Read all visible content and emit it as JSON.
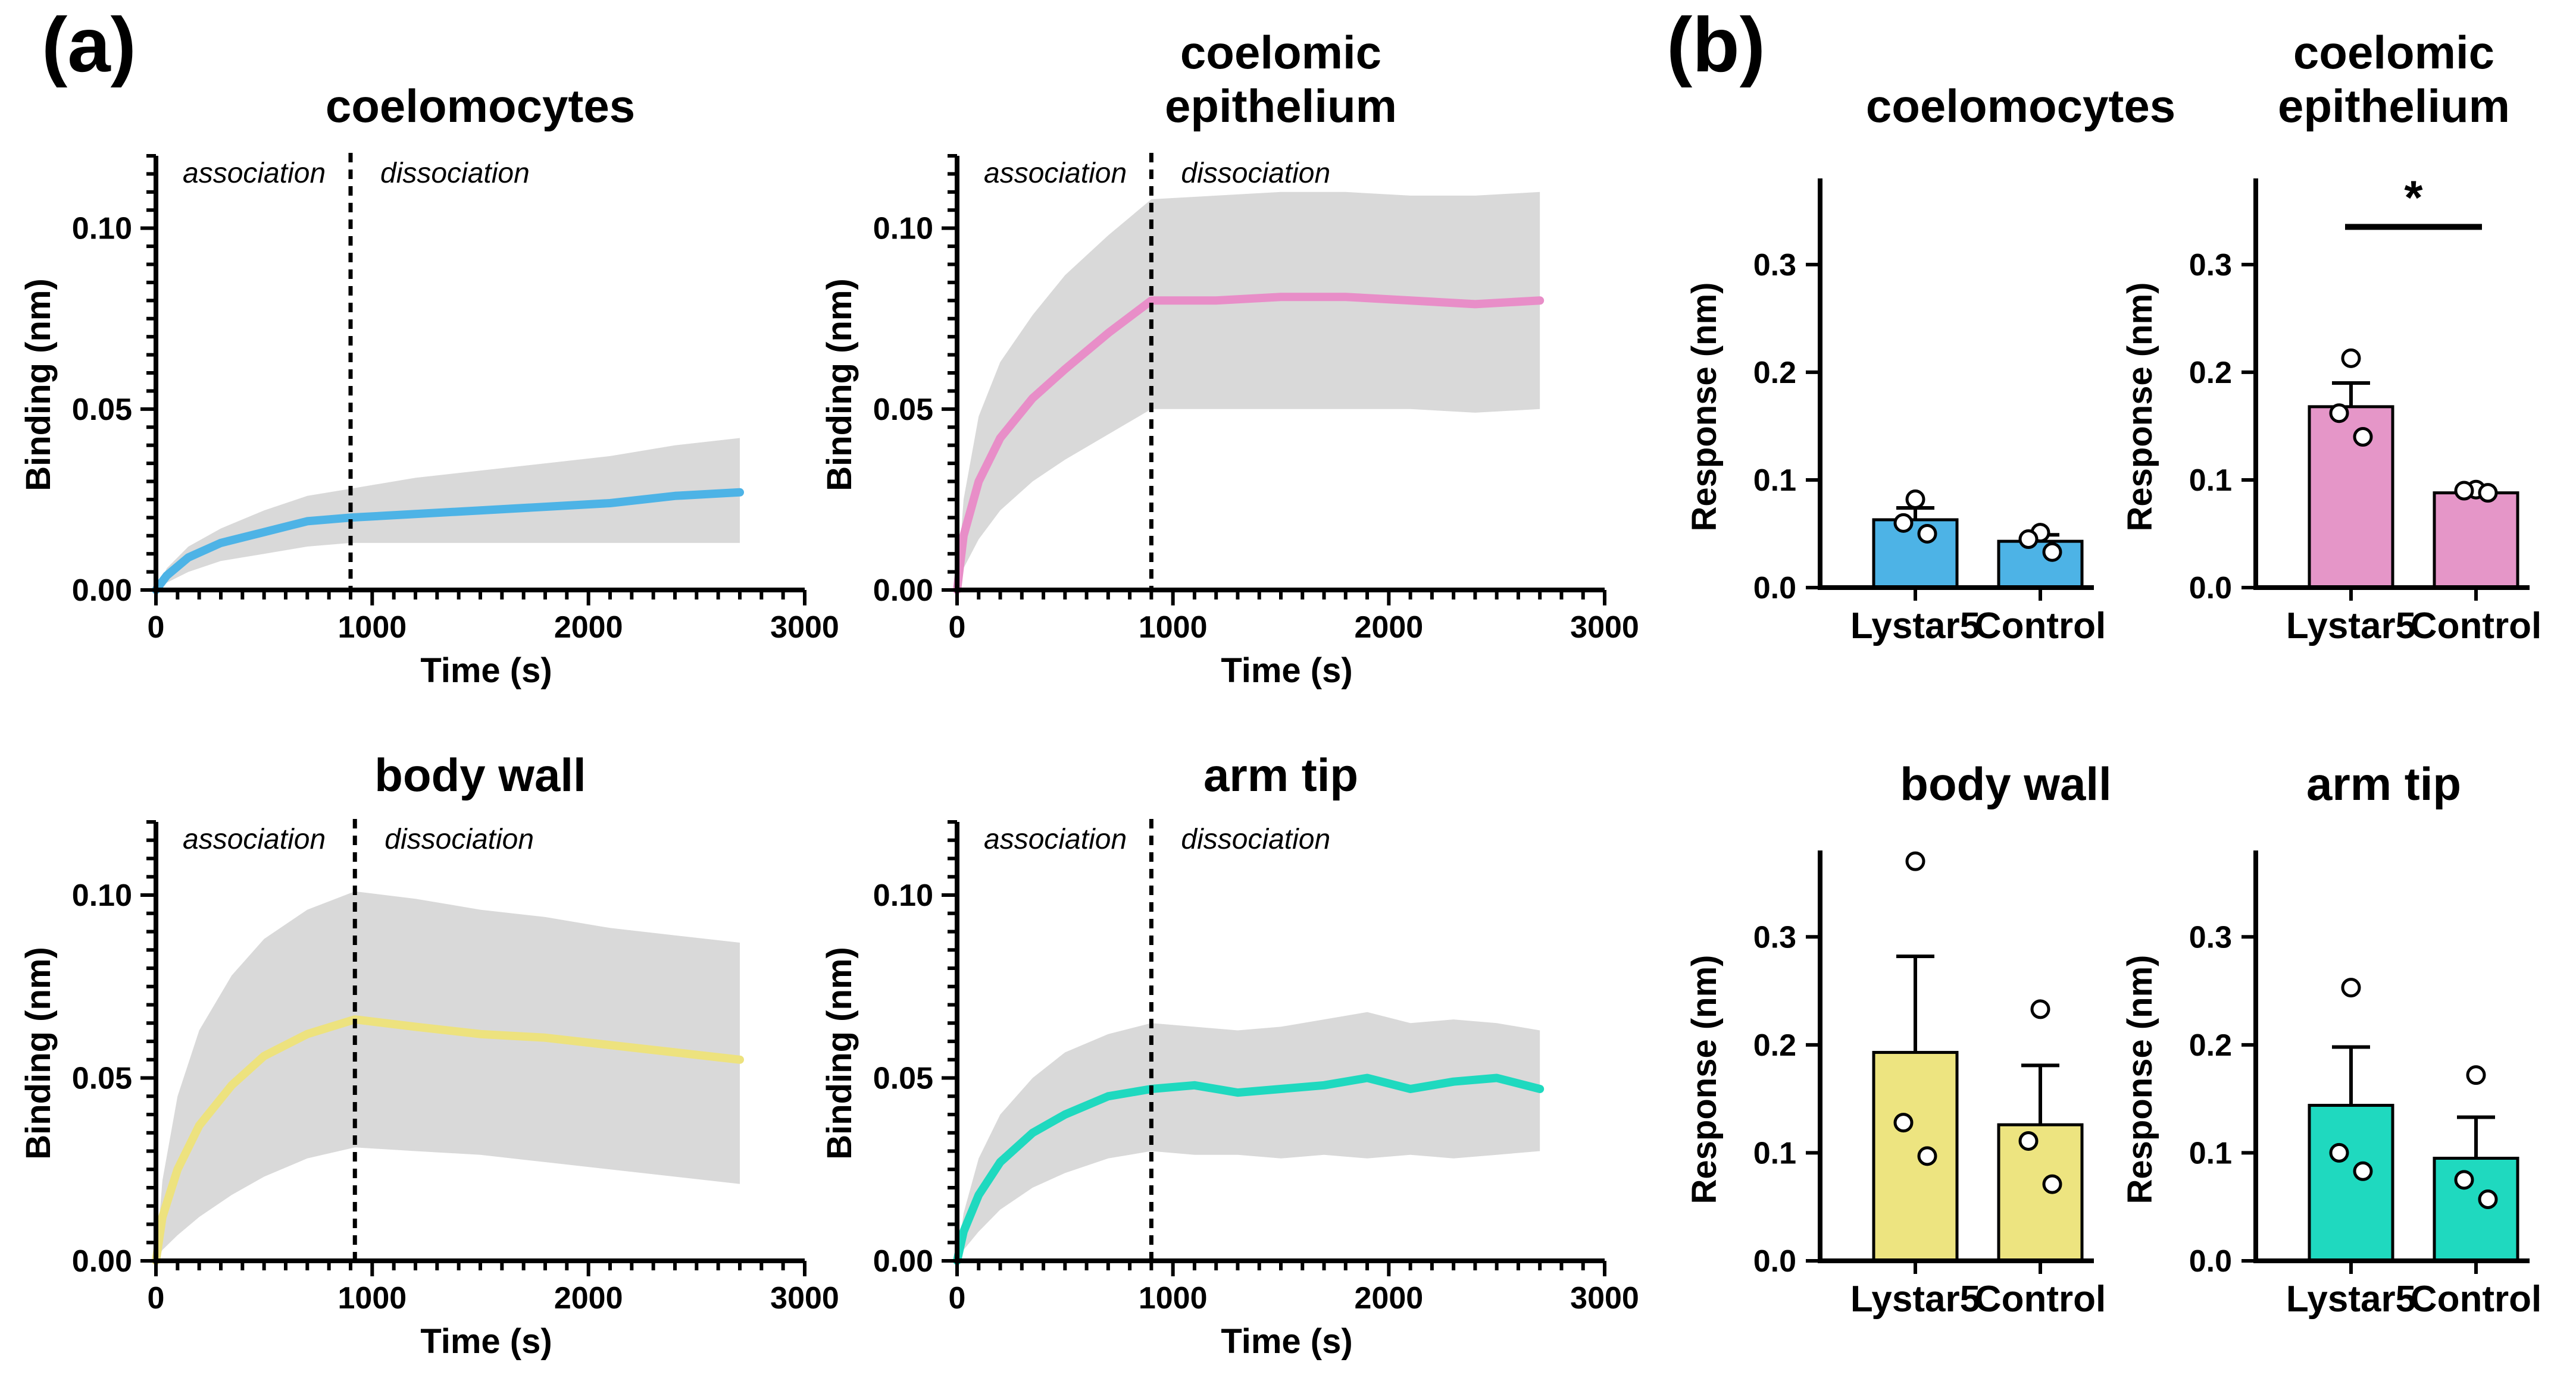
{
  "panels": {
    "a": "(a)",
    "b": "(b)"
  },
  "chart_data": [
    {
      "id": "kin-coelomocytes",
      "panel": "a",
      "type": "line",
      "title": [
        "coelomocytes"
      ],
      "xlabel": "Time (s)",
      "ylabel": "Binding (nm)",
      "xlim": [
        0,
        3000
      ],
      "ylim": [
        0,
        0.12
      ],
      "xticks": [
        0,
        1000,
        2000,
        3000
      ],
      "yticks": [
        0.0,
        0.05,
        0.1
      ],
      "ytick_labels": [
        "0.00",
        "0.05",
        "0.10"
      ],
      "x_dissociation": 900,
      "annotations": [
        "association",
        "dissociation"
      ],
      "color": "#4db3e6",
      "series": [
        {
          "name": "mean",
          "x": [
            0,
            50,
            150,
            300,
            500,
            700,
            900,
            1200,
            1500,
            1800,
            2100,
            2400,
            2700
          ],
          "y": [
            0.0,
            0.004,
            0.009,
            0.013,
            0.016,
            0.019,
            0.02,
            0.021,
            0.022,
            0.023,
            0.024,
            0.026,
            0.027
          ]
        }
      ],
      "band": {
        "x": [
          0,
          50,
          150,
          300,
          500,
          700,
          900,
          1200,
          1500,
          1800,
          2100,
          2400,
          2700
        ],
        "lower": [
          0.0,
          0.002,
          0.005,
          0.008,
          0.01,
          0.012,
          0.013,
          0.013,
          0.013,
          0.013,
          0.013,
          0.013,
          0.013
        ],
        "upper": [
          0.0,
          0.006,
          0.012,
          0.017,
          0.022,
          0.026,
          0.028,
          0.031,
          0.033,
          0.035,
          0.037,
          0.04,
          0.042
        ]
      }
    },
    {
      "id": "kin-coelomic-epithelium",
      "panel": "a",
      "type": "line",
      "title": [
        "coelomic",
        "epithelium"
      ],
      "xlabel": "Time (s)",
      "ylabel": "Binding (nm)",
      "xlim": [
        0,
        3000
      ],
      "ylim": [
        0,
        0.12
      ],
      "xticks": [
        0,
        1000,
        2000,
        3000
      ],
      "yticks": [
        0.0,
        0.05,
        0.1
      ],
      "ytick_labels": [
        "0.00",
        "0.05",
        "0.10"
      ],
      "x_dissociation": 900,
      "annotations": [
        "association",
        "dissociation"
      ],
      "color": "#e88ec8",
      "series": [
        {
          "name": "mean",
          "x": [
            0,
            30,
            100,
            200,
            350,
            500,
            700,
            900,
            1200,
            1500,
            1800,
            2100,
            2400,
            2700
          ],
          "y": [
            0.0,
            0.015,
            0.03,
            0.042,
            0.053,
            0.061,
            0.071,
            0.08,
            0.08,
            0.081,
            0.081,
            0.08,
            0.079,
            0.08
          ]
        }
      ],
      "band": {
        "x": [
          0,
          30,
          100,
          200,
          350,
          500,
          700,
          900,
          1200,
          1500,
          1800,
          2100,
          2400,
          2700
        ],
        "lower": [
          0.0,
          0.006,
          0.014,
          0.022,
          0.03,
          0.036,
          0.043,
          0.05,
          0.05,
          0.05,
          0.05,
          0.05,
          0.049,
          0.05
        ],
        "upper": [
          0.0,
          0.025,
          0.048,
          0.063,
          0.076,
          0.087,
          0.098,
          0.108,
          0.109,
          0.11,
          0.11,
          0.109,
          0.109,
          0.11
        ]
      }
    },
    {
      "id": "kin-body-wall",
      "panel": "a",
      "type": "line",
      "title": [
        "body wall"
      ],
      "xlabel": "Time (s)",
      "ylabel": "Binding (nm)",
      "xlim": [
        0,
        3000
      ],
      "ylim": [
        0,
        0.12
      ],
      "xticks": [
        0,
        1000,
        2000,
        3000
      ],
      "yticks": [
        0.0,
        0.05,
        0.1
      ],
      "ytick_labels": [
        "0.00",
        "0.05",
        "0.10"
      ],
      "x_dissociation": 920,
      "annotations": [
        "association",
        "dissociation"
      ],
      "color": "#ede27e",
      "series": [
        {
          "name": "mean",
          "x": [
            0,
            30,
            100,
            200,
            350,
            500,
            700,
            920,
            1200,
            1500,
            1800,
            2100,
            2400,
            2700
          ],
          "y": [
            0.0,
            0.012,
            0.025,
            0.037,
            0.048,
            0.056,
            0.062,
            0.066,
            0.064,
            0.062,
            0.061,
            0.059,
            0.057,
            0.055
          ]
        }
      ],
      "band": {
        "x": [
          0,
          30,
          100,
          200,
          350,
          500,
          700,
          920,
          1200,
          1500,
          1800,
          2100,
          2400,
          2700
        ],
        "lower": [
          0.0,
          0.003,
          0.007,
          0.012,
          0.018,
          0.023,
          0.028,
          0.031,
          0.03,
          0.029,
          0.027,
          0.025,
          0.023,
          0.021
        ],
        "upper": [
          0.0,
          0.022,
          0.045,
          0.063,
          0.078,
          0.088,
          0.096,
          0.101,
          0.099,
          0.096,
          0.094,
          0.091,
          0.089,
          0.087
        ]
      }
    },
    {
      "id": "kin-arm-tip",
      "panel": "a",
      "type": "line",
      "title": [
        "arm tip"
      ],
      "xlabel": "Time (s)",
      "ylabel": "Binding (nm)",
      "xlim": [
        0,
        3000
      ],
      "ylim": [
        0,
        0.12
      ],
      "xticks": [
        0,
        1000,
        2000,
        3000
      ],
      "yticks": [
        0.0,
        0.05,
        0.1
      ],
      "ytick_labels": [
        "0.00",
        "0.05",
        "0.10"
      ],
      "x_dissociation": 900,
      "annotations": [
        "association",
        "dissociation"
      ],
      "color": "#1fd9bf",
      "series": [
        {
          "name": "mean",
          "x": [
            0,
            30,
            100,
            200,
            350,
            500,
            700,
            900,
            1100,
            1300,
            1500,
            1700,
            1900,
            2100,
            2300,
            2500,
            2700
          ],
          "y": [
            0.0,
            0.008,
            0.018,
            0.027,
            0.035,
            0.04,
            0.045,
            0.047,
            0.048,
            0.046,
            0.047,
            0.048,
            0.05,
            0.047,
            0.049,
            0.05,
            0.047
          ]
        }
      ],
      "band": {
        "x": [
          0,
          30,
          100,
          200,
          350,
          500,
          700,
          900,
          1100,
          1300,
          1500,
          1700,
          1900,
          2100,
          2300,
          2500,
          2700
        ],
        "lower": [
          0.0,
          0.003,
          0.008,
          0.014,
          0.02,
          0.024,
          0.028,
          0.03,
          0.029,
          0.029,
          0.028,
          0.029,
          0.028,
          0.029,
          0.028,
          0.029,
          0.03
        ],
        "upper": [
          0.0,
          0.013,
          0.028,
          0.04,
          0.05,
          0.057,
          0.062,
          0.065,
          0.064,
          0.063,
          0.064,
          0.066,
          0.068,
          0.065,
          0.066,
          0.065,
          0.063
        ]
      }
    },
    {
      "id": "bar-coelomocytes",
      "panel": "b",
      "type": "bar",
      "title": [
        "coelomocytes"
      ],
      "ylabel": "Response (nm)",
      "ylim": [
        0,
        0.38
      ],
      "yticks": [
        0.0,
        0.1,
        0.2,
        0.3
      ],
      "ytick_labels": [
        "0.0",
        "0.1",
        "0.2",
        "0.3"
      ],
      "categories": [
        "Lystar5",
        "Control"
      ],
      "values": [
        0.063,
        0.043
      ],
      "errors": [
        0.011,
        0.006
      ],
      "points": [
        [
          0.082,
          0.06,
          0.05
        ],
        [
          0.051,
          0.045,
          0.033
        ]
      ],
      "color": "#4db3e6",
      "significance": ""
    },
    {
      "id": "bar-coelomic-epithelium",
      "panel": "b",
      "type": "bar",
      "title": [
        "coelomic",
        "epithelium"
      ],
      "ylabel": "Response (nm)",
      "ylim": [
        0,
        0.38
      ],
      "yticks": [
        0.0,
        0.1,
        0.2,
        0.3
      ],
      "ytick_labels": [
        "0.0",
        "0.1",
        "0.2",
        "0.3"
      ],
      "categories": [
        "Lystar5",
        "Control"
      ],
      "values": [
        0.168,
        0.088
      ],
      "errors": [
        0.022,
        0.002
      ],
      "points": [
        [
          0.213,
          0.162,
          0.14
        ],
        [
          0.091,
          0.09,
          0.088
        ]
      ],
      "color": "#e596c8",
      "significance": "*"
    },
    {
      "id": "bar-body-wall",
      "panel": "b",
      "type": "bar",
      "title": [
        "body wall"
      ],
      "ylabel": "Response (nm)",
      "ylim": [
        0,
        0.38
      ],
      "yticks": [
        0.0,
        0.1,
        0.2,
        0.3
      ],
      "ytick_labels": [
        "0.0",
        "0.1",
        "0.2",
        "0.3"
      ],
      "categories": [
        "Lystar5",
        "Control"
      ],
      "values": [
        0.193,
        0.126
      ],
      "errors": [
        0.089,
        0.055
      ],
      "points": [
        [
          0.37,
          0.128,
          0.097
        ],
        [
          0.233,
          0.111,
          0.071
        ]
      ],
      "color": "#ede480",
      "significance": ""
    },
    {
      "id": "bar-arm-tip",
      "panel": "b",
      "type": "bar",
      "title": [
        "arm tip"
      ],
      "ylabel": "Response (nm)",
      "ylim": [
        0,
        0.38
      ],
      "yticks": [
        0.0,
        0.1,
        0.2,
        0.3
      ],
      "ytick_labels": [
        "0.0",
        "0.1",
        "0.2",
        "0.3"
      ],
      "categories": [
        "Lystar5",
        "Control"
      ],
      "values": [
        0.144,
        0.095
      ],
      "errors": [
        0.054,
        0.038
      ],
      "points": [
        [
          0.253,
          0.1,
          0.083
        ],
        [
          0.172,
          0.075,
          0.057
        ]
      ],
      "color": "#1fd9bf",
      "significance": ""
    }
  ]
}
